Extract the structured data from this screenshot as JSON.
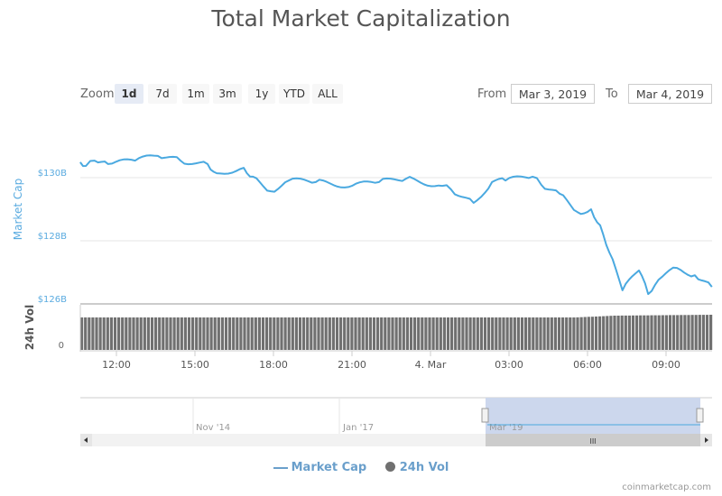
{
  "title": "Total Market Capitalization",
  "zoom": {
    "label": "Zoom",
    "buttons": [
      "1d",
      "7d",
      "1m",
      "3m",
      "1y",
      "YTD",
      "ALL"
    ],
    "selected": "1d"
  },
  "range": {
    "from_label": "From",
    "from": "Mar 3, 2019",
    "to_label": "To",
    "to": "Mar 4, 2019"
  },
  "colors": {
    "line": "#4aa9e0",
    "volume": "#707070",
    "navigator_selection": "#ccd7ed",
    "axis_label": "#5aabe0"
  },
  "legend": {
    "market_cap": "Market Cap",
    "volume": "24h Vol"
  },
  "credit": "coinmarketcap.com",
  "navigator": {
    "labels": [
      "Nov '14",
      "Jan '17",
      "Mar '19"
    ]
  },
  "chart_data": {
    "type": "line",
    "yaxis_label": "Market Cap",
    "volume_axis_label": "24h Vol",
    "volume_ticks": [
      "0"
    ],
    "yticks": [
      {
        "v": 130,
        "label": "$130B"
      },
      {
        "v": 128,
        "label": "$128B"
      },
      {
        "v": 126,
        "label": "$126B"
      }
    ],
    "ylim": [
      126,
      130.5
    ],
    "xticks": [
      {
        "h": 12,
        "label": "12:00"
      },
      {
        "h": 15,
        "label": "15:00"
      },
      {
        "h": 18,
        "label": "18:00"
      },
      {
        "h": 21,
        "label": "21:00"
      },
      {
        "h": 24,
        "label": "4. Mar"
      },
      {
        "h": 27,
        "label": "03:00"
      },
      {
        "h": 30,
        "label": "06:00"
      },
      {
        "h": 33,
        "label": "09:00"
      }
    ],
    "grid": true,
    "series": [
      {
        "name": "Market Cap",
        "unit": "$B",
        "points": [
          [
            "2019-03-03 10:37",
            130.49
          ],
          [
            "2019-03-03 10:50",
            130.37
          ],
          [
            "2019-03-03 11:10",
            130.54
          ],
          [
            "2019-03-03 11:41",
            130.43
          ],
          [
            "2019-03-03 12:43",
            130.54
          ],
          [
            "2019-03-03 13:35",
            130.69
          ],
          [
            "2019-03-03 14:27",
            130.54
          ],
          [
            "2019-03-03 15:29",
            130.43
          ],
          [
            "2019-03-03 15:50",
            130.14
          ],
          [
            "2019-03-03 16:52",
            130.31
          ],
          [
            "2019-03-03 17:13",
            130.03
          ],
          [
            "2019-03-03 17:54",
            129.57
          ],
          [
            "2019-03-03 18:35",
            129.91
          ],
          [
            "2019-03-03 19:37",
            129.86
          ],
          [
            "2019-03-03 21:00",
            129.74
          ],
          [
            "2019-03-03 22:02",
            129.86
          ],
          [
            "2019-03-03 23:04",
            129.97
          ],
          [
            "2019-03-04 00:27",
            129.74
          ],
          [
            "2019-03-04 00:47",
            129.63
          ],
          [
            "2019-03-04 01:39",
            129.2
          ],
          [
            "2019-03-04 02:21",
            129.86
          ],
          [
            "2019-03-04 02:52",
            129.91
          ],
          [
            "2019-03-04 03:54",
            130.03
          ],
          [
            "2019-03-04 04:14",
            129.77
          ],
          [
            "2019-03-04 04:56",
            129.49
          ],
          [
            "2019-03-04 05:37",
            128.91
          ],
          [
            "2019-03-04 06:08",
            129.0
          ],
          [
            "2019-03-04 06:29",
            128.49
          ],
          [
            "2019-03-04 06:50",
            127.63
          ],
          [
            "2019-03-04 07:20",
            126.43
          ],
          [
            "2019-03-04 07:58",
            127.06
          ],
          [
            "2019-03-04 08:19",
            126.31
          ],
          [
            "2019-03-04 08:43",
            126.77
          ],
          [
            "2019-03-04 09:25",
            127.14
          ],
          [
            "2019-03-04 10:06",
            126.91
          ],
          [
            "2019-03-04 10:45",
            126.54
          ]
        ]
      },
      {
        "name": "24h Vol",
        "type": "column",
        "relative_levels": [
          [
            "2019-03-03 10:37",
            0.72
          ],
          [
            "2019-03-04 05:30",
            0.72
          ],
          [
            "2019-03-04 07:00",
            0.76
          ],
          [
            "2019-03-04 10:45",
            0.78
          ]
        ]
      }
    ]
  }
}
